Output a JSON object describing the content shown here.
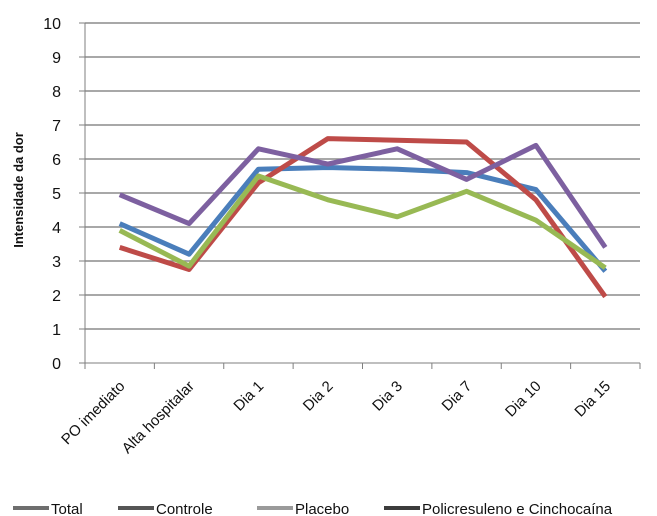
{
  "chart_data": {
    "type": "line",
    "title": "",
    "xlabel": "",
    "ylabel": "Intensidade da dor",
    "ylim": [
      0,
      10
    ],
    "yticks": [
      0,
      1,
      2,
      3,
      4,
      5,
      6,
      7,
      8,
      9,
      10
    ],
    "grid": true,
    "legend_position": "bottom",
    "categories": [
      "PO imediato",
      "Alta hospitalar",
      "Dia 1",
      "Dia 2",
      "Dia 3",
      "Dia 7",
      "Dia 10",
      "Dia 15"
    ],
    "series": [
      {
        "name": "Total",
        "color": "#4a7ebb",
        "legend_color": "#6e6e6e",
        "values": [
          4.1,
          3.2,
          5.7,
          5.75,
          5.7,
          5.6,
          5.1,
          2.7
        ]
      },
      {
        "name": "Controle",
        "color": "#be4b48",
        "legend_color": "#555555",
        "values": [
          3.4,
          2.75,
          5.3,
          6.6,
          6.55,
          6.5,
          4.8,
          1.95
        ]
      },
      {
        "name": "Placebo",
        "color": "#98b954",
        "legend_color": "#9a9a9a",
        "values": [
          3.9,
          2.85,
          5.5,
          4.8,
          4.3,
          5.05,
          4.2,
          2.8
        ]
      },
      {
        "name": "Policresuleno e Cinchocaína",
        "color": "#7d60a0",
        "legend_color": "#3c3c3c",
        "values": [
          4.95,
          4.1,
          6.3,
          5.85,
          6.3,
          5.4,
          6.4,
          3.4
        ]
      }
    ]
  }
}
